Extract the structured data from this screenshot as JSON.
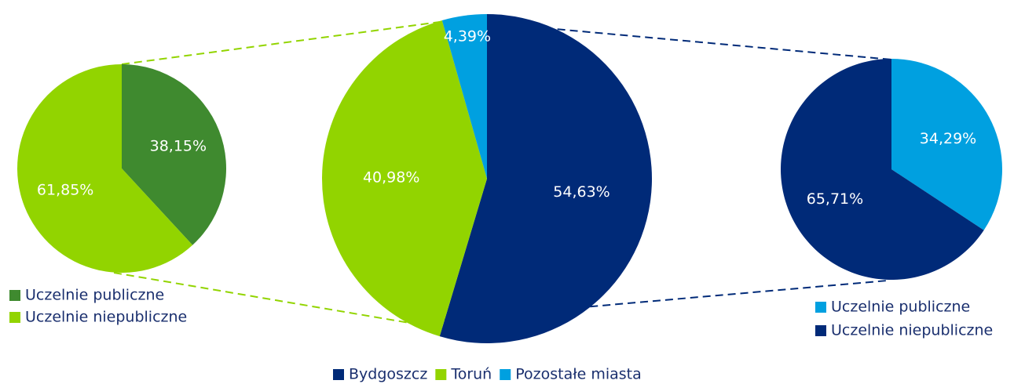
{
  "chart_data": [
    {
      "type": "pie",
      "categories": [
        "Uczelnie publiczne",
        "Uczelnie niepubliczne"
      ],
      "values": [
        38.15,
        61.85
      ],
      "value_labels": [
        "38,15%",
        "61,85%"
      ],
      "colors": [
        "#3f8a2f",
        "#92d400"
      ]
    },
    {
      "type": "pie",
      "categories": [
        "Bydgoszcz",
        "Toruń",
        "Pozostałe miasta"
      ],
      "values": [
        54.63,
        40.98,
        4.39
      ],
      "value_labels": [
        "54,63%",
        "40,98%",
        "4,39%"
      ],
      "colors": [
        "#002a78",
        "#92d400",
        "#00a0e0"
      ]
    },
    {
      "type": "pie",
      "categories": [
        "Uczelnie publiczne",
        "Uczelnie niepubliczne"
      ],
      "values": [
        34.29,
        65.71
      ],
      "value_labels": [
        "34,29%",
        "65,71%"
      ],
      "colors": [
        "#00a0e0",
        "#002a78"
      ]
    }
  ]
}
